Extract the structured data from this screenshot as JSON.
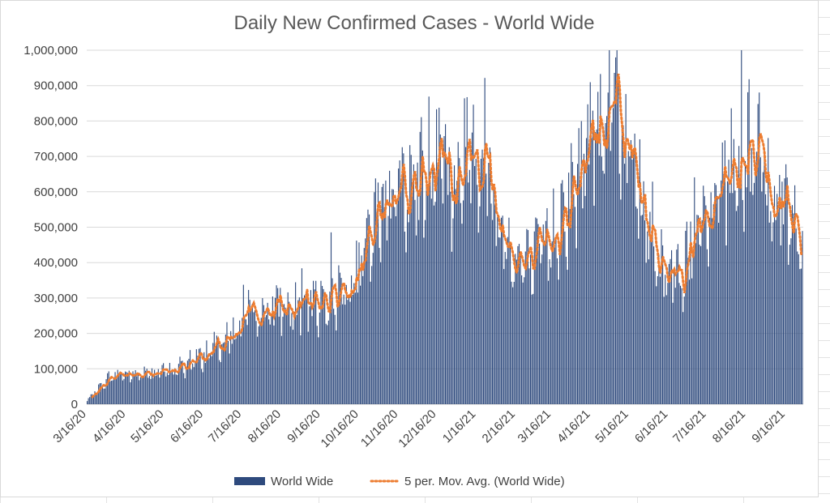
{
  "chart_data": {
    "type": "bar",
    "title": "Daily New Confirmed Cases - World Wide",
    "xlabel": "",
    "ylabel": "",
    "x_start": "3/16/20",
    "x_end": "9/30/21",
    "x_ticks": [
      "3/16/20",
      "4/16/20",
      "5/16/20",
      "6/16/20",
      "7/16/20",
      "8/16/20",
      "9/16/20",
      "10/16/20",
      "11/16/20",
      "12/16/20",
      "1/16/21",
      "2/16/21",
      "3/16/21",
      "4/16/21",
      "5/16/21",
      "6/16/21",
      "7/16/21",
      "8/16/21",
      "9/16/21"
    ],
    "y_ticks": [
      "0",
      "100,000",
      "200,000",
      "300,000",
      "400,000",
      "500,000",
      "600,000",
      "700,000",
      "800,000",
      "900,000",
      "1,000,000"
    ],
    "ylim": [
      0,
      1000000
    ],
    "grid": "horizontal",
    "legend_position": "bottom",
    "series": [
      {
        "name": "World Wide",
        "kind": "bar",
        "color": "#2e4a7d"
      },
      {
        "name": "5 per. Mov. Avg. (World Wide)",
        "kind": "dotted-line",
        "color": "#ed7d31"
      }
    ],
    "trend_points": [
      [
        "3/16/20",
        10000
      ],
      [
        "3/24/20",
        40000
      ],
      [
        "4/1/20",
        70000
      ],
      [
        "4/10/20",
        85000
      ],
      [
        "4/20/20",
        80000
      ],
      [
        "5/1/20",
        82000
      ],
      [
        "5/16/20",
        88000
      ],
      [
        "6/1/20",
        105000
      ],
      [
        "6/16/20",
        135000
      ],
      [
        "7/1/20",
        175000
      ],
      [
        "7/16/20",
        215000
      ],
      [
        "8/1/20",
        255000
      ],
      [
        "8/16/20",
        265000
      ],
      [
        "9/1/20",
        260000
      ],
      [
        "9/16/20",
        285000
      ],
      [
        "10/1/20",
        305000
      ],
      [
        "10/16/20",
        360000
      ],
      [
        "10/25/20",
        440000
      ],
      [
        "11/1/20",
        520000
      ],
      [
        "11/10/20",
        590000
      ],
      [
        "11/16/20",
        600000
      ],
      [
        "11/25/20",
        580000
      ],
      [
        "12/1/20",
        600000
      ],
      [
        "12/10/20",
        650000
      ],
      [
        "12/18/20",
        790000
      ],
      [
        "12/28/20",
        580000
      ],
      [
        "1/5/21",
        650000
      ],
      [
        "1/10/21",
        760000
      ],
      [
        "1/16/21",
        720000
      ],
      [
        "1/25/21",
        620000
      ],
      [
        "2/5/21",
        480000
      ],
      [
        "2/16/21",
        400000
      ],
      [
        "2/25/21",
        380000
      ],
      [
        "3/5/21",
        400000
      ],
      [
        "3/16/21",
        460000
      ],
      [
        "3/28/21",
        560000
      ],
      [
        "4/5/21",
        600000
      ],
      [
        "4/16/21",
        750000
      ],
      [
        "4/25/21",
        830000
      ],
      [
        "5/1/21",
        850000
      ],
      [
        "5/8/21",
        830000
      ],
      [
        "5/16/21",
        700000
      ],
      [
        "5/25/21",
        560000
      ],
      [
        "6/5/21",
        420000
      ],
      [
        "6/16/21",
        380000
      ],
      [
        "6/25/21",
        370000
      ],
      [
        "7/5/21",
        410000
      ],
      [
        "7/16/21",
        500000
      ],
      [
        "7/25/21",
        560000
      ],
      [
        "8/5/21",
        640000
      ],
      [
        "8/16/21",
        680000
      ],
      [
        "8/25/21",
        690000
      ],
      [
        "9/1/21",
        620000
      ],
      [
        "9/16/21",
        560000
      ],
      [
        "9/30/21",
        430000
      ]
    ]
  }
}
